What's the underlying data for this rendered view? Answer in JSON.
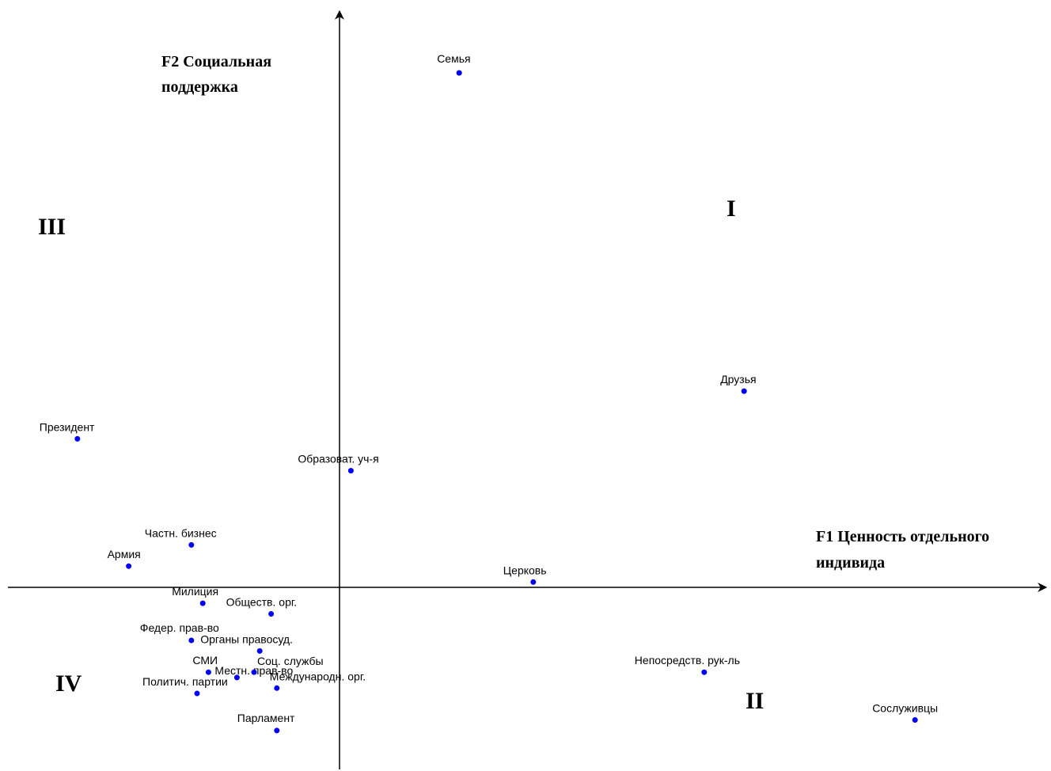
{
  "chart_data": {
    "type": "scatter",
    "title": "",
    "x_axis_title": [
      "F1 Ценность отдельного",
      "индивида"
    ],
    "y_axis_title": [
      "F2 Социальная",
      "поддержка"
    ],
    "quadrant_labels": {
      "q1": "I",
      "q2": "II",
      "q3": "III",
      "q4": "IV"
    },
    "grid": false,
    "marker_color": "#0000ff",
    "axis_color": "#000000",
    "points": [
      {
        "label": "Семья",
        "x": 0.21,
        "y": 0.97
      },
      {
        "label": "Друзья",
        "x": 0.71,
        "y": 0.37
      },
      {
        "label": "Президент",
        "x": -0.46,
        "y": 0.28
      },
      {
        "label": "Образоват. уч-я",
        "x": 0.02,
        "y": 0.22
      },
      {
        "label": "Частн. бизнес",
        "x": -0.26,
        "y": 0.08
      },
      {
        "label": "Армия",
        "x": -0.37,
        "y": 0.04
      },
      {
        "label": "Церковь",
        "x": 0.34,
        "y": 0.01
      },
      {
        "label": "Милиция",
        "x": -0.24,
        "y": -0.03
      },
      {
        "label": "Обществ. орг.",
        "x": -0.12,
        "y": -0.05
      },
      {
        "label": "Федер. прав-во",
        "x": -0.26,
        "y": -0.1
      },
      {
        "label": "Органы правосуд.",
        "x": -0.14,
        "y": -0.12
      },
      {
        "label": "СМИ",
        "x": -0.23,
        "y": -0.16
      },
      {
        "label": "Местн. прав-во",
        "x": -0.18,
        "y": -0.17
      },
      {
        "label": "Соц. службы",
        "x": -0.15,
        "y": -0.16
      },
      {
        "label": "Международн. орг.",
        "x": -0.11,
        "y": -0.19
      },
      {
        "label": "Политич. партии",
        "x": -0.25,
        "y": -0.2
      },
      {
        "label": "Парламент",
        "x": -0.11,
        "y": -0.27
      },
      {
        "label": "Непосредств. рук-ль",
        "x": 0.64,
        "y": -0.16
      },
      {
        "label": "Сослуживцы",
        "x": 1.01,
        "y": -0.25
      }
    ]
  }
}
